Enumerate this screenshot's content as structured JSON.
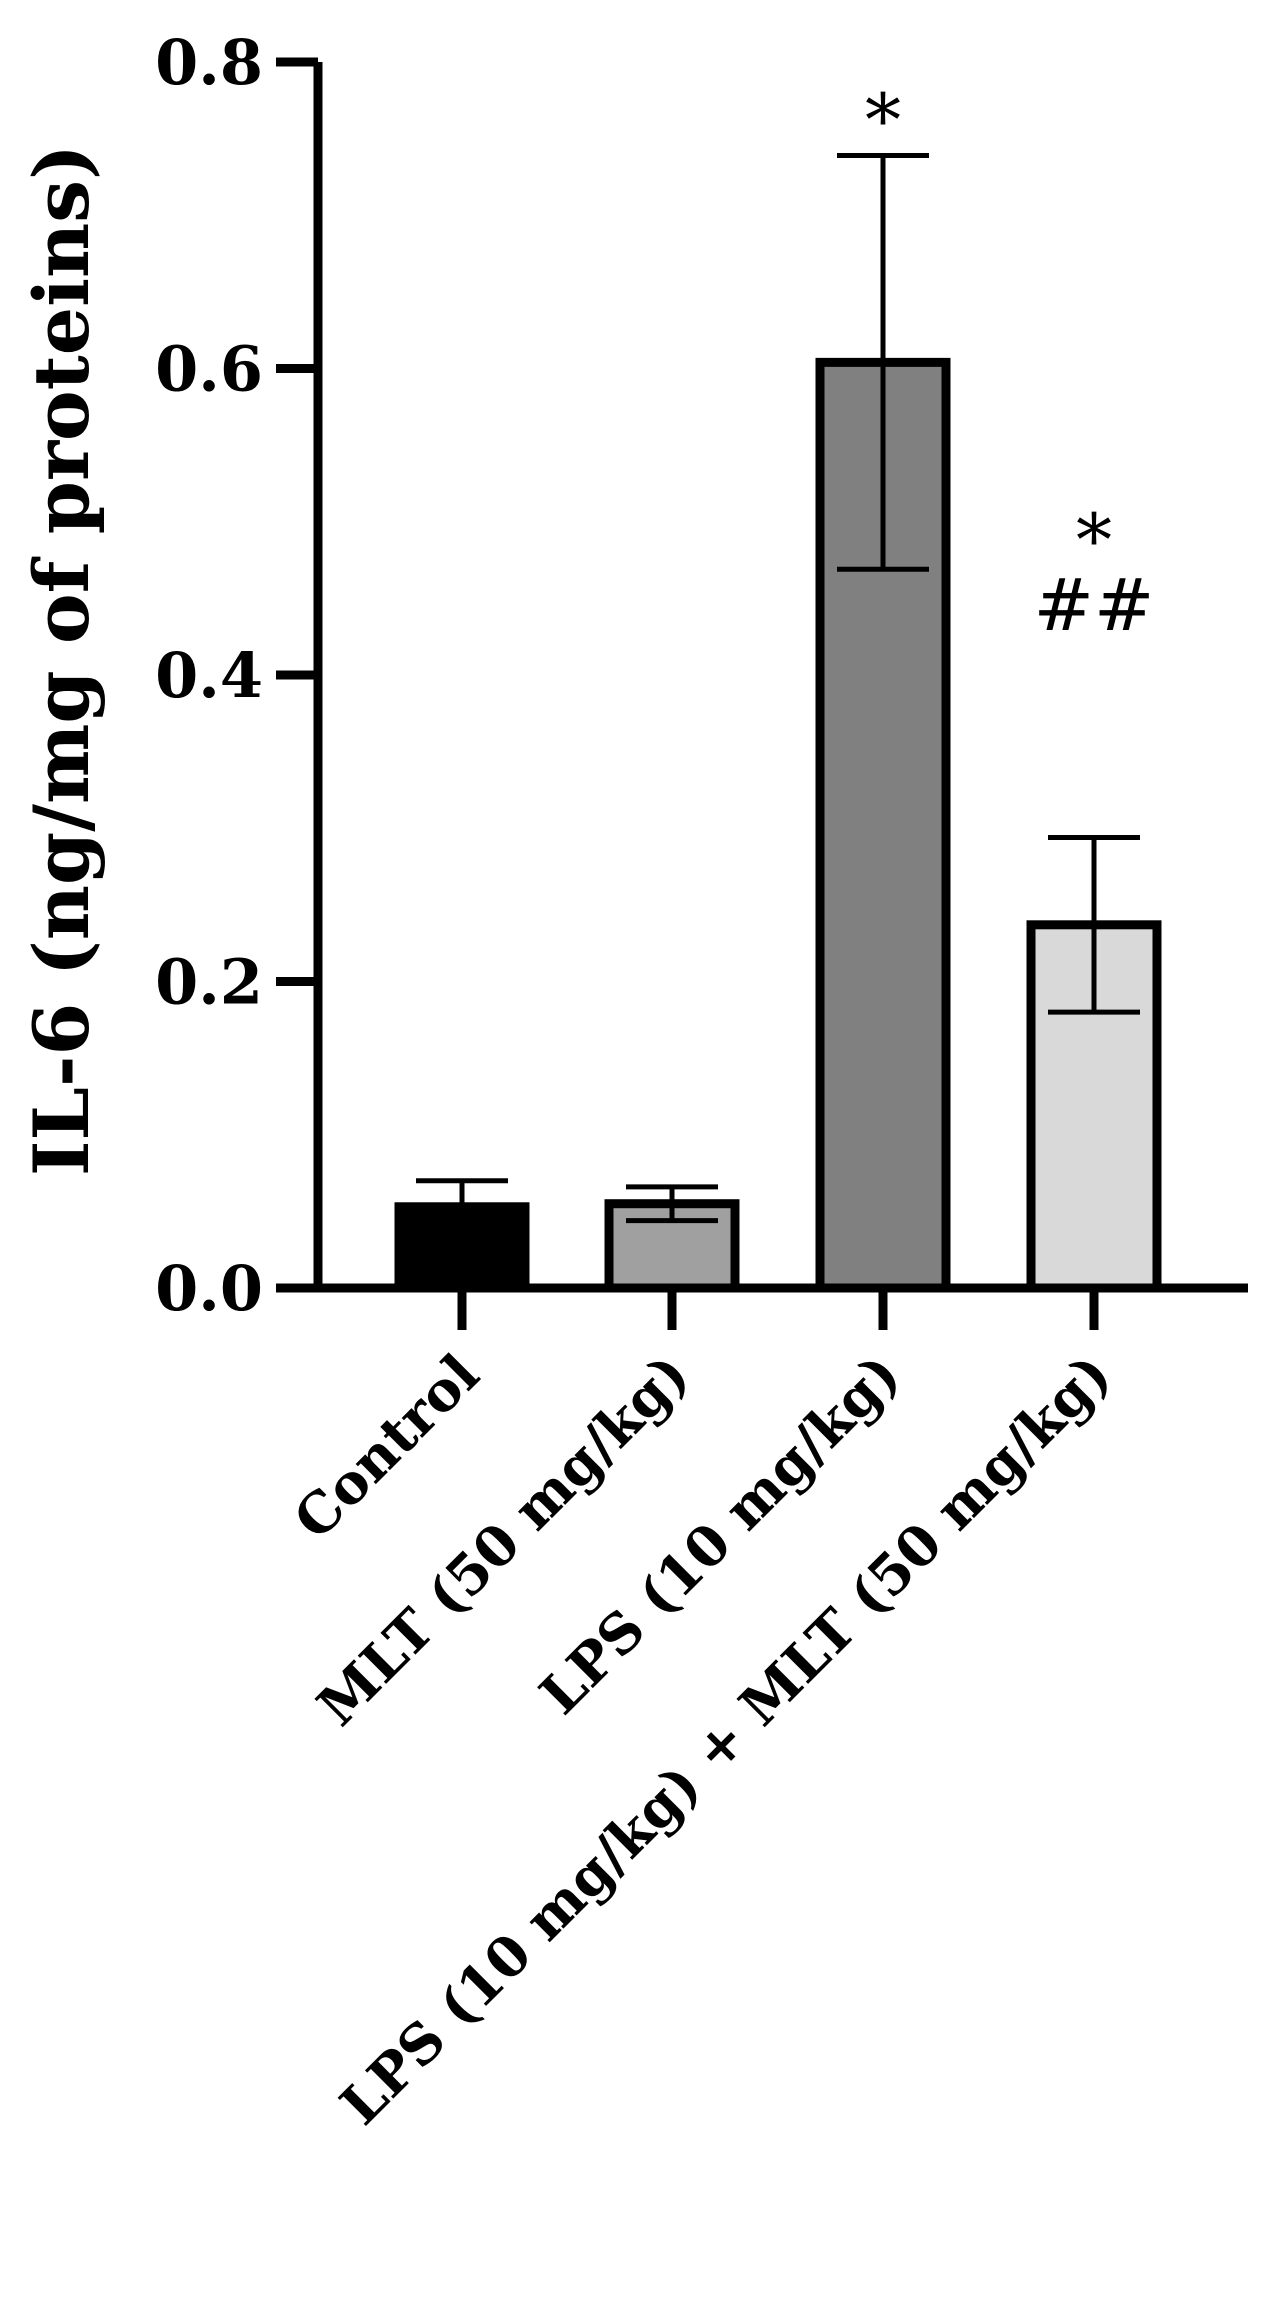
{
  "chart_data": {
    "type": "bar",
    "ylabel": "IL-6 (ng/mg of proteins)",
    "ylim": [
      0,
      0.8
    ],
    "yticks": [
      "0.0",
      "0.2",
      "0.4",
      "0.6",
      "0.8"
    ],
    "grid": false,
    "categories": [
      "Control",
      "MLT (50 mg/kg)",
      "LPS (10 mg/kg)",
      "LPS (10 mg/kg) + MLT (50 mg/kg)"
    ],
    "values": [
      0.053,
      0.055,
      0.604,
      0.237
    ],
    "errors": [
      0.017,
      0.011,
      0.135,
      0.057
    ],
    "bar_colors": [
      "#000000",
      "#a0a0a0",
      "#808080",
      "#d9d9d9"
    ],
    "annotations": [
      {
        "category": 2,
        "text": "*"
      },
      {
        "category": 3,
        "text": "*"
      },
      {
        "category": 3,
        "text": "##"
      }
    ]
  }
}
